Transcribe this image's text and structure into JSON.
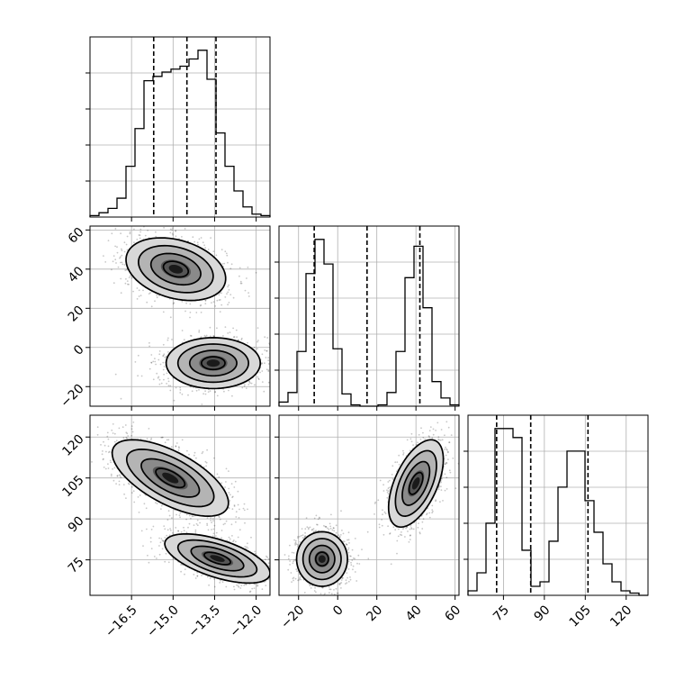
{
  "chart_data": {
    "type": "corner",
    "grid": true,
    "parameters": [
      {
        "name": "",
        "range": [
          -18.0,
          -11.5
        ],
        "ticks": [
          -16.5,
          -15.0,
          -13.5,
          -12.0
        ],
        "tick_labels": [
          "−16.5",
          "−15.0",
          "−13.5",
          "−12.0"
        ],
        "quantiles": [
          -15.7,
          -14.5,
          -13.45
        ],
        "hist": {
          "edges": [
            -18.0,
            -17.675,
            -17.35,
            -17.025,
            -16.7,
            -16.375,
            -16.05,
            -15.725,
            -15.4,
            -15.075,
            -14.75,
            -14.425,
            -14.1,
            -13.775,
            -13.45,
            -13.125,
            -12.8,
            -12.475,
            -12.15,
            -11.825,
            -11.5
          ],
          "counts": [
            1,
            3,
            6,
            13,
            35,
            61,
            94,
            97,
            100,
            102,
            104,
            109,
            115,
            95,
            58,
            35,
            18,
            7,
            2,
            1
          ]
        }
      },
      {
        "name": "",
        "range": [
          -30,
          62
        ],
        "ticks": [
          -20,
          0,
          20,
          40,
          60
        ],
        "tick_labels": [
          "−20",
          "0",
          "20",
          "40",
          "60"
        ],
        "quantiles": [
          -12,
          15,
          42
        ],
        "hist": {
          "edges": [
            -30,
            -25.4,
            -20.8,
            -16.2,
            -11.6,
            -7,
            -2.4,
            2.2,
            6.8,
            11.4,
            16,
            20.6,
            25.2,
            29.8,
            34.4,
            39,
            43.6,
            48.2,
            52.8,
            57.4,
            62
          ],
          "counts": [
            3,
            10,
            40,
            97,
            122,
            104,
            42,
            9,
            1,
            0,
            0,
            1,
            10,
            40,
            94,
            117,
            72,
            18,
            6,
            1
          ]
        }
      },
      {
        "name": "",
        "range": [
          62,
          128
        ],
        "ticks": [
          75,
          90,
          105,
          120
        ],
        "tick_labels": [
          "75",
          "90",
          "105",
          "120"
        ],
        "quantiles": [
          72.5,
          85,
          106
        ],
        "hist": {
          "edges": [
            62,
            65.3,
            68.6,
            71.9,
            75.2,
            78.5,
            81.8,
            85.1,
            88.4,
            91.7,
            95,
            98.3,
            101.6,
            104.9,
            108.2,
            111.5,
            114.8,
            118.1,
            121.4,
            124.7,
            128
          ],
          "counts": [
            2,
            10,
            32,
            74,
            74,
            70,
            20,
            4,
            6,
            24,
            48,
            64,
            64,
            42,
            28,
            14,
            6,
            2,
            1,
            0
          ]
        }
      }
    ],
    "pairs": [
      {
        "x": 0,
        "y": 1,
        "clusters": [
          {
            "center": [
              -14.9,
              40
            ],
            "sigma": [
              0.9,
              8
            ],
            "rho": -0.3,
            "n": 1400
          },
          {
            "center": [
              -13.55,
              -8
            ],
            "sigma": [
              0.85,
              6.5
            ],
            "rho": 0.0,
            "n": 1400
          }
        ]
      },
      {
        "x": 0,
        "y": 2,
        "clusters": [
          {
            "center": [
              -15.1,
              105
            ],
            "sigma": [
              1.05,
              7
            ],
            "rho": -0.65,
            "n": 1400
          },
          {
            "center": [
              -13.4,
              75.5
            ],
            "sigma": [
              0.95,
              4.5
            ],
            "rho": -0.6,
            "n": 1400
          }
        ]
      },
      {
        "x": 1,
        "y": 2,
        "clusters": [
          {
            "center": [
              -8,
              75.3
            ],
            "sigma": [
              6.5,
              5
            ],
            "rho": 0.0,
            "n": 1400
          },
          {
            "center": [
              40,
              103
            ],
            "sigma": [
              7,
              8
            ],
            "rho": 0.55,
            "n": 1400
          }
        ]
      }
    ]
  }
}
